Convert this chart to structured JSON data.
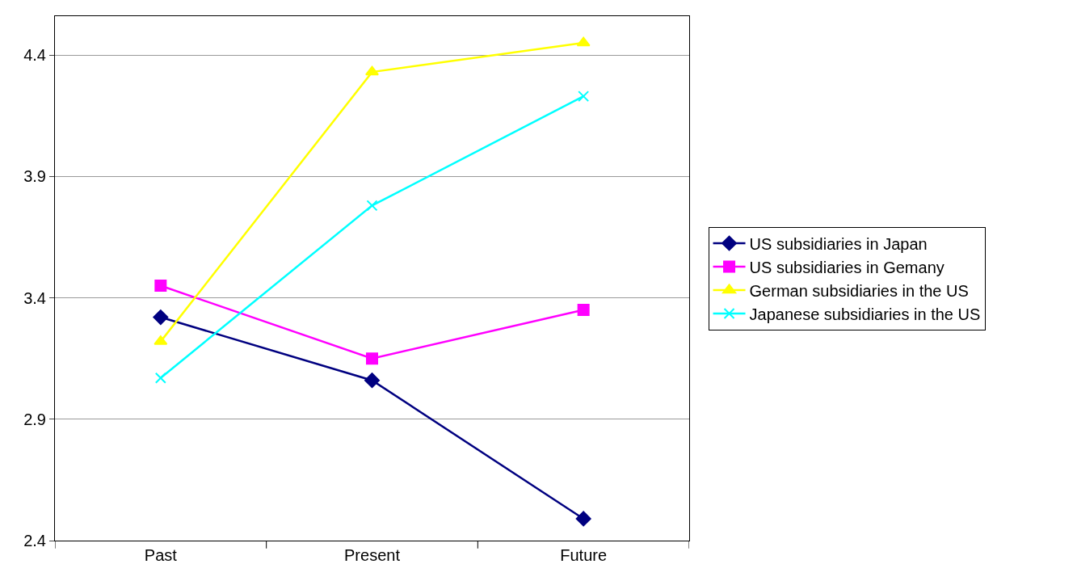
{
  "chart_data": {
    "type": "line",
    "categories": [
      "Past",
      "Present",
      "Future"
    ],
    "series": [
      {
        "name": "US subsidiaries in Japan",
        "color": "#000080",
        "marker": "diamond",
        "values": [
          3.32,
          3.06,
          2.49
        ]
      },
      {
        "name": "US subsidiaries in Gemany",
        "color": "#ff00ff",
        "marker": "square",
        "values": [
          3.45,
          3.15,
          3.35
        ]
      },
      {
        "name": "German subsidiaries in the US",
        "color": "#ffff00",
        "marker": "triangle",
        "values": [
          3.22,
          4.33,
          4.45
        ]
      },
      {
        "name": "Japanese subsidiaries in the US",
        "color": "#00ffff",
        "marker": "cross",
        "values": [
          3.07,
          3.78,
          4.23
        ]
      }
    ],
    "ylim": [
      2.4,
      4.56
    ],
    "yticks": [
      2.4,
      2.9,
      3.4,
      3.9,
      4.4
    ],
    "grid": "y",
    "legend": "right",
    "line_style": "solid"
  }
}
